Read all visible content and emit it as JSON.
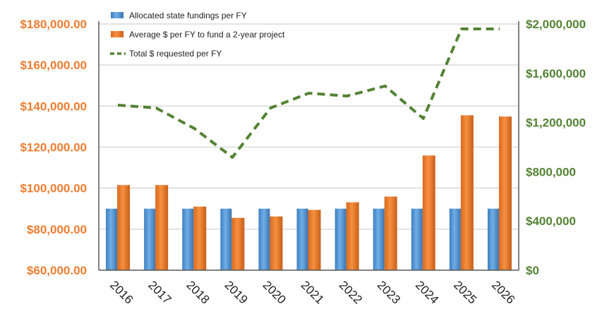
{
  "chart_data": {
    "type": "bar",
    "title": "",
    "categories": [
      "2016",
      "2017",
      "2018",
      "2019",
      "2020",
      "2021",
      "2022",
      "2023",
      "2024",
      "2025",
      "2026"
    ],
    "series": [
      {
        "name": "Allocated state fundings per FY",
        "type": "bar",
        "axis": "left",
        "color": "#5B9BD5",
        "values": [
          90000,
          90000,
          90000,
          90000,
          90000,
          90000,
          90000,
          90000,
          90000,
          90000,
          90000
        ]
      },
      {
        "name": "Average $ per FY to fund a 2-year project",
        "type": "bar",
        "axis": "left",
        "color": "#ED7D31",
        "values": [
          101500,
          101500,
          91000,
          85500,
          86200,
          89400,
          93100,
          95900,
          115900,
          135500,
          134900
        ]
      },
      {
        "name": "Total $ requested per FY",
        "type": "line",
        "axis": "right",
        "color": "#548235",
        "dash": "dashed",
        "values": [
          1341000,
          1318000,
          1152000,
          917000,
          1318000,
          1438000,
          1415000,
          1496000,
          1232000,
          1960000,
          1960000
        ]
      }
    ],
    "y_left": {
      "ylim": [
        60000,
        180000
      ],
      "ticks": [
        "$60,000.00",
        "$80,000.00",
        "$100,000.00",
        "$120,000.00",
        "$140,000.00",
        "$160,000.00",
        "$180,000.00"
      ]
    },
    "y_right": {
      "ylim": [
        0,
        2000000
      ],
      "ticks": [
        "$0",
        "$400,000",
        "$800,000",
        "$1,200,000",
        "$1,600,000",
        "$2,000,000"
      ]
    },
    "grid": true,
    "legend": "top-left"
  }
}
